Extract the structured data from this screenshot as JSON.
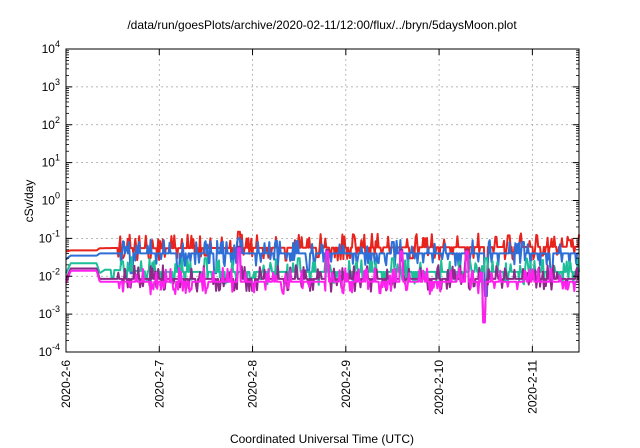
{
  "chart_data": {
    "type": "line",
    "title": "/data/run/goesPlots/archive/2020-02-11/12:00/flux/../bryn/5daysMoon.plot",
    "xlabel": "Coordinated Universal Time (UTC)",
    "ylabel": "cSv/day",
    "yscale": "log",
    "ylim": [
      0.0001,
      10000
    ],
    "xlim": [
      "2020-02-06 00:00",
      "2020-02-11 12:00"
    ],
    "grid": true,
    "legend": "none",
    "y_ticks": [
      {
        "base": "10",
        "exp": "-4"
      },
      {
        "base": "10",
        "exp": "-3"
      },
      {
        "base": "10",
        "exp": "-2"
      },
      {
        "base": "10",
        "exp": "-1"
      },
      {
        "base": "10",
        "exp": "0"
      },
      {
        "base": "10",
        "exp": "1"
      },
      {
        "base": "10",
        "exp": "2"
      },
      {
        "base": "10",
        "exp": "3"
      },
      {
        "base": "10",
        "exp": "4"
      }
    ],
    "x_ticks": [
      "2020-2-6",
      "2020-2-7",
      "2020-2-8",
      "2020-2-9",
      "2020-2-10",
      "2020-2-11"
    ],
    "series": [
      {
        "color": "#e8221c",
        "baseline": [
          [
            0,
            0.045
          ],
          [
            0.05,
            0.048
          ],
          [
            0.33,
            0.048
          ],
          [
            0.36,
            0.055
          ],
          [
            0.6,
            0.056
          ],
          [
            1.0,
            0.055
          ],
          [
            5.5,
            0.06
          ]
        ],
        "dips": [
          [
            0.6,
            0.03
          ],
          [
            0.9,
            0.03
          ],
          [
            1.5,
            0.035
          ],
          [
            2.7,
            0.032
          ],
          [
            3.7,
            0.03
          ],
          [
            4.5,
            0.004
          ],
          [
            5.1,
            0.035
          ]
        ],
        "spikes": [
          [
            1.85,
            0.15
          ],
          [
            4.75,
            0.12
          ],
          [
            5.4,
            0.09
          ]
        ]
      },
      {
        "color": "#2d6fd6",
        "baseline": [
          [
            0,
            0.028
          ],
          [
            0.05,
            0.035
          ],
          [
            0.33,
            0.035
          ],
          [
            0.36,
            0.04
          ],
          [
            1.0,
            0.04
          ],
          [
            5.5,
            0.04
          ]
        ],
        "dips": [
          [
            0.7,
            0.012
          ],
          [
            1.2,
            0.015
          ],
          [
            1.6,
            0.012
          ],
          [
            2.6,
            0.014
          ],
          [
            3.5,
            0.012
          ],
          [
            4.5,
            0.003
          ],
          [
            5.2,
            0.012
          ]
        ],
        "spikes": [
          [
            1.85,
            0.1
          ],
          [
            3.5,
            0.08
          ],
          [
            4.9,
            0.08
          ]
        ]
      },
      {
        "color": "#1dbf98",
        "baseline": [
          [
            0,
            0.012
          ],
          [
            0.05,
            0.022
          ],
          [
            0.33,
            0.022
          ],
          [
            0.36,
            0.012
          ],
          [
            0.42,
            0.015
          ],
          [
            1.0,
            0.013
          ],
          [
            5.5,
            0.013
          ]
        ],
        "dips": [
          [
            0.5,
            0.009
          ],
          [
            2.0,
            0.009
          ],
          [
            3.0,
            0.009
          ],
          [
            4.0,
            0.009
          ],
          [
            5.0,
            0.009
          ]
        ],
        "spikes": [
          [
            0.6,
            0.025
          ],
          [
            1.5,
            0.03
          ],
          [
            2.5,
            0.03
          ],
          [
            3.5,
            0.03
          ],
          [
            4.5,
            0.03
          ]
        ]
      },
      {
        "color": "#8c2a8a",
        "baseline": [
          [
            0,
            0.008
          ],
          [
            0.05,
            0.016
          ],
          [
            0.33,
            0.016
          ],
          [
            0.36,
            0.0085
          ],
          [
            5.5,
            0.0085
          ]
        ],
        "dips": [
          [
            4.48,
            0.0007
          ]
        ],
        "spikes": [
          [
            1.85,
            0.06
          ],
          [
            2.8,
            0.05
          ],
          [
            3.6,
            0.05
          ],
          [
            4.3,
            0.05
          ]
        ]
      },
      {
        "color": "#ff22ee",
        "baseline": [
          [
            0,
            0.0065
          ],
          [
            0.05,
            0.014
          ],
          [
            0.33,
            0.014
          ],
          [
            0.36,
            0.0072
          ],
          [
            5.5,
            0.0072
          ]
        ],
        "dips": [
          [
            4.48,
            0.0006
          ]
        ],
        "spikes": [
          [
            1.85,
            0.055
          ],
          [
            2.8,
            0.045
          ],
          [
            3.6,
            0.045
          ],
          [
            4.3,
            0.045
          ]
        ]
      }
    ]
  }
}
